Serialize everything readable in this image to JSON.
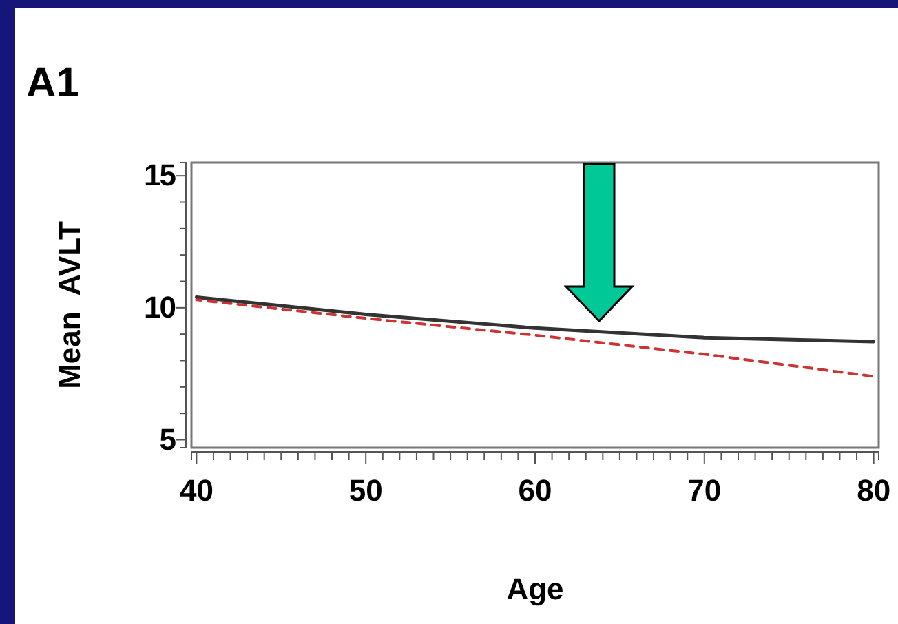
{
  "chart_data": {
    "type": "line",
    "title": "A1",
    "xlabel": "Age",
    "ylabel": "Mean  AVLT",
    "x": [
      40,
      50,
      60,
      70,
      80
    ],
    "series": [
      {
        "color": "#333333",
        "line_style": "solid",
        "values": [
          10.4,
          9.75,
          9.23,
          8.87,
          8.72
        ]
      },
      {
        "color": "#cc3333",
        "line_style": "dashed",
        "values": [
          10.3,
          9.6,
          8.96,
          8.24,
          7.4
        ]
      }
    ],
    "xlim": [
      39.7,
      80.3
    ],
    "ylim": [
      4.7,
      15.5
    ],
    "xticks": [
      40,
      {
        "value": 41,
        "label": null
      },
      {
        "value": 42,
        "label": null
      },
      {
        "value": 43,
        "label": null
      },
      {
        "value": 44,
        "label": null
      },
      {
        "value": 45,
        "label": null
      },
      {
        "value": 46,
        "label": null
      },
      {
        "value": 47,
        "label": null
      },
      {
        "value": 48,
        "label": null
      },
      {
        "value": 49,
        "label": null
      },
      50,
      {
        "value": 51,
        "label": null
      },
      {
        "value": 52,
        "label": null
      },
      {
        "value": 53,
        "label": null
      },
      {
        "value": 54,
        "label": null
      },
      {
        "value": 55,
        "label": null
      },
      {
        "value": 56,
        "label": null
      },
      {
        "value": 57,
        "label": null
      },
      {
        "value": 58,
        "label": null
      },
      {
        "value": 59,
        "label": null
      },
      60,
      {
        "value": 61,
        "label": null
      },
      {
        "value": 62,
        "label": null
      },
      {
        "value": 63,
        "label": null
      },
      {
        "value": 64,
        "label": null
      },
      {
        "value": 65,
        "label": null
      },
      {
        "value": 66,
        "label": null
      },
      {
        "value": 67,
        "label": null
      },
      {
        "value": 68,
        "label": null
      },
      {
        "value": 69,
        "label": null
      },
      70,
      {
        "value": 71,
        "label": null
      },
      {
        "value": 72,
        "label": null
      },
      {
        "value": 73,
        "label": null
      },
      {
        "value": 74,
        "label": null
      },
      {
        "value": 75,
        "label": null
      },
      {
        "value": 76,
        "label": null
      },
      {
        "value": 77,
        "label": null
      },
      {
        "value": 78,
        "label": null
      },
      {
        "value": 79,
        "label": null
      },
      80
    ],
    "yticks": [
      5,
      {
        "value": 6,
        "label": null
      },
      {
        "value": 7,
        "label": null
      },
      {
        "value": 8,
        "label": null
      },
      {
        "value": 9,
        "label": null
      },
      10,
      {
        "value": 11,
        "label": null
      },
      {
        "value": 12,
        "label": null
      },
      {
        "value": 13,
        "label": null
      },
      {
        "value": 14,
        "label": null
      },
      15
    ],
    "grid": false,
    "marker": "none"
  }
}
